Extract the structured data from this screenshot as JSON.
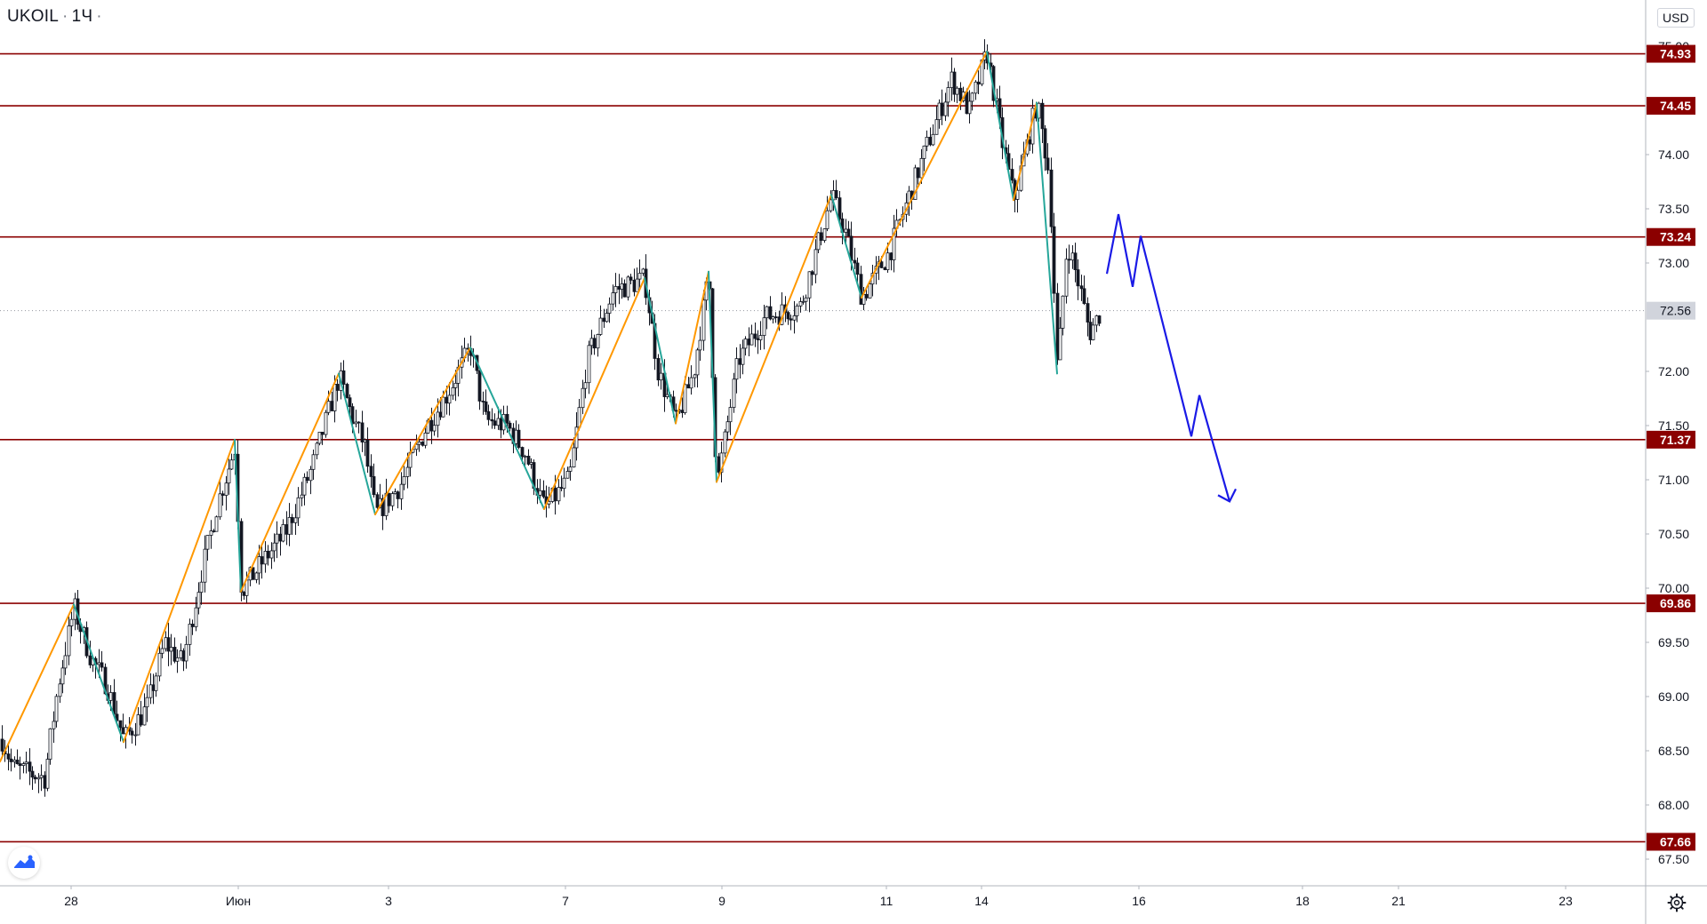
{
  "header": {
    "symbol": "UKOIL",
    "interval": "1Ч",
    "currency": "USD"
  },
  "colors": {
    "level_line": "#8b0000",
    "level_label_bg": "#8b0000",
    "bull_candle": "#ffffff",
    "bear_candle": "#131722",
    "zigzag_up": "#ff9800",
    "zigzag_down": "#26a69a",
    "forecast": "#1a1ae6",
    "current_price_bg": "#d1d4dc",
    "grid": "#f0f3fa",
    "axis_text": "#131722"
  },
  "icons": {
    "logo": "tradingview-logo-icon",
    "settings": "gear-icon"
  },
  "chart_data": {
    "type": "candlestick",
    "x_ticks": [
      "28",
      "Июн",
      "3",
      "7",
      "9",
      "11",
      "14",
      "16",
      "18",
      "21",
      "23"
    ],
    "y_ticks": [
      "75.00",
      "74.00",
      "73.50",
      "73.00",
      "72.00",
      "71.50",
      "71.00",
      "70.50",
      "70.00",
      "69.50",
      "69.00",
      "68.50",
      "68.00",
      "67.50"
    ],
    "ylim": [
      67.3,
      75.2
    ],
    "current_price": "72.56",
    "horizontal_levels": [
      {
        "label": "74.93",
        "price": 74.93
      },
      {
        "label": "74.45",
        "price": 74.45
      },
      {
        "label": "73.24",
        "price": 73.24
      },
      {
        "label": "71.37",
        "price": 71.37
      },
      {
        "label": "69.86",
        "price": 69.86
      },
      {
        "label": "67.66",
        "price": 67.66
      }
    ],
    "price_path": [
      [
        0,
        68.65
      ],
      [
        14,
        68.35
      ],
      [
        30,
        68.3
      ],
      [
        50,
        68.25
      ],
      [
        65,
        69.1
      ],
      [
        83,
        69.82
      ],
      [
        102,
        69.35
      ],
      [
        120,
        69.1
      ],
      [
        139,
        68.6
      ],
      [
        165,
        68.9
      ],
      [
        185,
        69.5
      ],
      [
        205,
        69.3
      ],
      [
        225,
        70.1
      ],
      [
        245,
        70.8
      ],
      [
        264,
        71.3
      ],
      [
        271,
        69.97
      ],
      [
        300,
        70.3
      ],
      [
        320,
        70.5
      ],
      [
        350,
        71.1
      ],
      [
        381,
        71.95
      ],
      [
        395,
        71.6
      ],
      [
        410,
        71.3
      ],
      [
        422,
        70.68
      ],
      [
        450,
        70.95
      ],
      [
        480,
        71.5
      ],
      [
        500,
        71.75
      ],
      [
        529,
        72.22
      ],
      [
        545,
        71.55
      ],
      [
        570,
        71.5
      ],
      [
        590,
        71.25
      ],
      [
        612,
        70.73
      ],
      [
        640,
        71.0
      ],
      [
        660,
        72.1
      ],
      [
        690,
        72.75
      ],
      [
        725,
        72.85
      ],
      [
        740,
        72.0
      ],
      [
        760,
        71.52
      ],
      [
        780,
        72.0
      ],
      [
        797,
        72.9
      ],
      [
        806,
        70.95
      ],
      [
        830,
        72.1
      ],
      [
        860,
        72.5
      ],
      [
        900,
        72.6
      ],
      [
        935,
        73.62
      ],
      [
        950,
        73.3
      ],
      [
        969,
        72.68
      ],
      [
        1000,
        73.1
      ],
      [
        1030,
        73.8
      ],
      [
        1070,
        74.7
      ],
      [
        1090,
        74.4
      ],
      [
        1110,
        74.95
      ],
      [
        1125,
        74.2
      ],
      [
        1140,
        73.58
      ],
      [
        1155,
        74.1
      ],
      [
        1166,
        74.48
      ],
      [
        1180,
        73.8
      ],
      [
        1189,
        71.98
      ],
      [
        1200,
        73.2
      ],
      [
        1215,
        72.75
      ],
      [
        1225,
        72.35
      ],
      [
        1238,
        72.56
      ]
    ],
    "zigzag": [
      [
        0,
        68.4,
        "up"
      ],
      [
        83,
        69.85,
        "down"
      ],
      [
        139,
        68.58,
        "up"
      ],
      [
        264,
        71.37,
        "down"
      ],
      [
        271,
        69.97,
        "up"
      ],
      [
        381,
        71.98,
        "down"
      ],
      [
        422,
        70.68,
        "up"
      ],
      [
        529,
        72.22,
        "down"
      ],
      [
        612,
        70.73,
        "up"
      ],
      [
        725,
        72.86,
        "down"
      ],
      [
        760,
        71.52,
        "up"
      ],
      [
        797,
        72.92,
        "down"
      ],
      [
        806,
        70.98,
        "up"
      ],
      [
        935,
        73.63,
        "down"
      ],
      [
        969,
        72.68,
        "up"
      ],
      [
        1110,
        74.95,
        "down"
      ],
      [
        1140,
        73.58,
        "up"
      ],
      [
        1166,
        74.48,
        "down"
      ],
      [
        1189,
        71.98,
        "end"
      ]
    ],
    "forecast_path": [
      [
        1245,
        72.9
      ],
      [
        1258,
        73.45
      ],
      [
        1274,
        72.78
      ],
      [
        1283,
        73.25
      ],
      [
        1340,
        71.4
      ],
      [
        1349,
        71.78
      ],
      [
        1383,
        70.8
      ]
    ]
  }
}
